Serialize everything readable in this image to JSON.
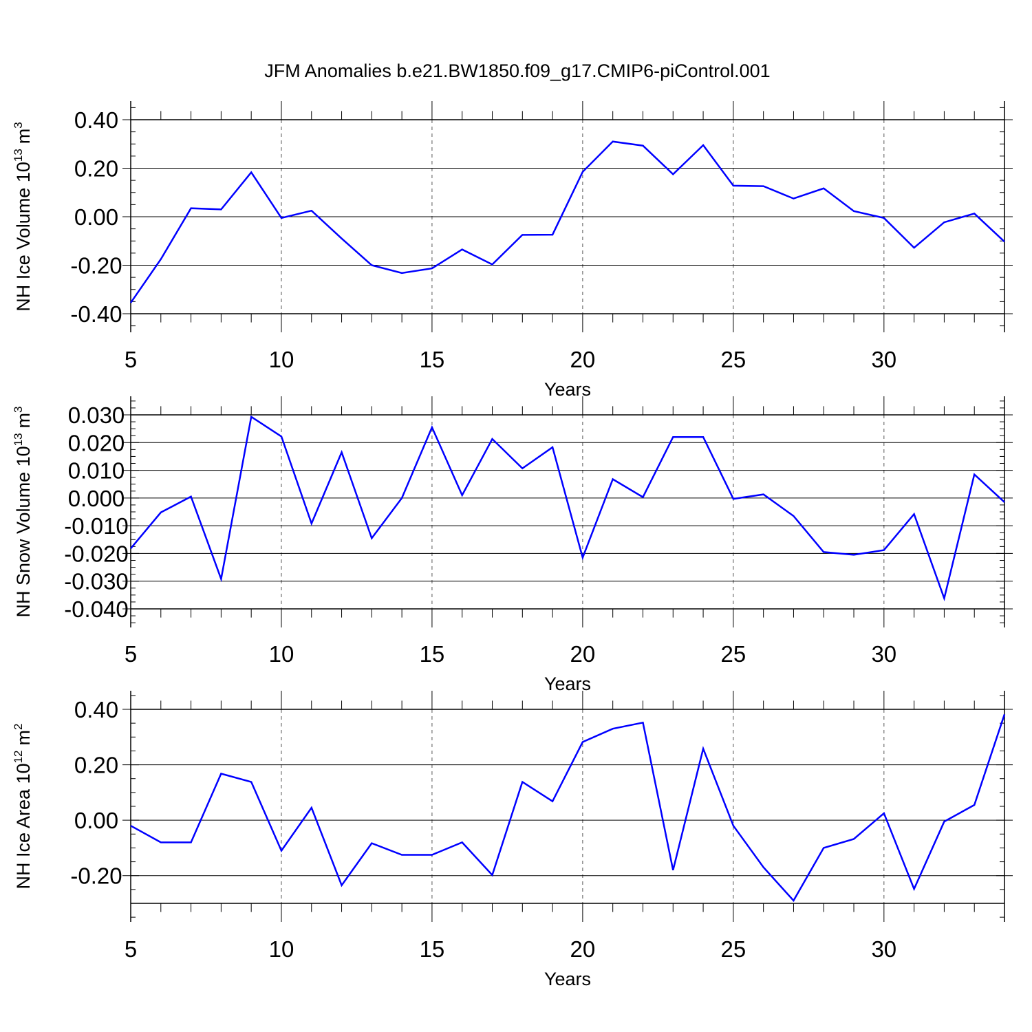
{
  "figure": {
    "title": "JFM Anomalies b.e21.BW1850.f09_g17.CMIP6-piControl.001"
  },
  "colors": {
    "series": "#0000ff",
    "axes": "#000000",
    "grid": "#555555",
    "background": "#ffffff"
  },
  "chart_data": [
    {
      "type": "line",
      "title": "",
      "xlabel": "Years",
      "ylabel": "NH Ice Volume 10",
      "ylabel_sup": "13",
      "ylabel_unit": "m",
      "ylabel_unit_sup": "3",
      "xlim": [
        5,
        34
      ],
      "ylim": [
        -0.4,
        0.4
      ],
      "x_ticks": [
        5,
        10,
        15,
        20,
        25,
        30
      ],
      "x_tick_labels": [
        "5",
        "10",
        "15",
        "20",
        "25",
        "30"
      ],
      "y_ticks": [
        -0.4,
        -0.2,
        0.0,
        0.2,
        0.4
      ],
      "y_tick_labels": [
        "-0.40",
        "-0.20",
        "0.00",
        "0.20",
        "0.40"
      ],
      "vertical_grid_at": [
        10,
        15,
        20,
        25,
        30
      ],
      "x": [
        5,
        6,
        7,
        8,
        9,
        10,
        11,
        12,
        13,
        14,
        15,
        16,
        17,
        18,
        19,
        20,
        21,
        22,
        23,
        24,
        25,
        26,
        27,
        28,
        29,
        30,
        31,
        32,
        33,
        34
      ],
      "series": [
        {
          "values": [
            -0.355,
            -0.175,
            0.035,
            0.03,
            0.183,
            -0.005,
            0.025,
            -0.09,
            -0.2,
            -0.232,
            -0.213,
            -0.135,
            -0.197,
            -0.075,
            -0.074,
            0.185,
            0.31,
            0.293,
            0.175,
            0.295,
            0.128,
            0.126,
            0.075,
            0.117,
            0.023,
            -0.005,
            -0.128,
            -0.023,
            0.013,
            -0.103
          ]
        }
      ]
    },
    {
      "type": "line",
      "title": "",
      "xlabel": "Years",
      "ylabel": "NH Snow Volume 10",
      "ylabel_sup": "13",
      "ylabel_unit": "m",
      "ylabel_unit_sup": "3",
      "xlim": [
        5,
        34
      ],
      "ylim": [
        -0.04,
        0.03
      ],
      "x_ticks": [
        5,
        10,
        15,
        20,
        25,
        30
      ],
      "x_tick_labels": [
        "5",
        "10",
        "15",
        "20",
        "25",
        "30"
      ],
      "y_ticks": [
        -0.04,
        -0.03,
        -0.02,
        -0.01,
        0.0,
        0.01,
        0.02,
        0.03
      ],
      "y_tick_labels": [
        "-0.040",
        "-0.030",
        "-0.020",
        "-0.010",
        "0.000",
        "0.010",
        "0.020",
        "0.030"
      ],
      "vertical_grid_at": [
        10,
        15,
        20,
        25,
        30
      ],
      "x": [
        5,
        6,
        7,
        8,
        9,
        10,
        11,
        12,
        13,
        14,
        15,
        16,
        17,
        18,
        19,
        20,
        21,
        22,
        23,
        24,
        25,
        26,
        27,
        28,
        29,
        30,
        31,
        32,
        33,
        34
      ],
      "series": [
        {
          "values": [
            -0.0182,
            -0.0052,
            0.0005,
            -0.0292,
            0.0293,
            0.0222,
            -0.0092,
            0.0165,
            -0.0145,
            0.0,
            0.0255,
            0.001,
            0.0213,
            0.0107,
            0.0183,
            -0.0215,
            0.0068,
            0.0003,
            0.022,
            0.022,
            -0.0003,
            0.0013,
            -0.0065,
            -0.0195,
            -0.0205,
            -0.0188,
            -0.0058,
            -0.0362,
            0.0085,
            -0.0015
          ]
        }
      ]
    },
    {
      "type": "line",
      "title": "",
      "xlabel": "Years",
      "ylabel": "NH Ice Area 10",
      "ylabel_sup": "12",
      "ylabel_unit": "m",
      "ylabel_unit_sup": "2",
      "xlim": [
        5,
        34
      ],
      "ylim": [
        -0.3,
        0.4
      ],
      "x_ticks": [
        5,
        10,
        15,
        20,
        25,
        30
      ],
      "x_tick_labels": [
        "5",
        "10",
        "15",
        "20",
        "25",
        "30"
      ],
      "y_ticks": [
        -0.2,
        0.0,
        0.2,
        0.4
      ],
      "y_tick_labels": [
        "-0.20",
        "0.00",
        "0.20",
        "0.40"
      ],
      "vertical_grid_at": [
        10,
        15,
        20,
        25,
        30
      ],
      "x": [
        5,
        6,
        7,
        8,
        9,
        10,
        11,
        12,
        13,
        14,
        15,
        16,
        17,
        18,
        19,
        20,
        21,
        22,
        23,
        24,
        25,
        26,
        27,
        28,
        29,
        30,
        31,
        32,
        33,
        34
      ],
      "series": [
        {
          "values": [
            -0.02,
            -0.08,
            -0.08,
            0.168,
            0.138,
            -0.11,
            0.045,
            -0.235,
            -0.083,
            -0.125,
            -0.125,
            -0.08,
            -0.198,
            0.138,
            0.068,
            0.282,
            0.33,
            0.352,
            -0.18,
            0.258,
            -0.02,
            -0.17,
            -0.29,
            -0.1,
            -0.068,
            0.025,
            -0.248,
            -0.005,
            0.055,
            0.382
          ]
        }
      ]
    }
  ]
}
